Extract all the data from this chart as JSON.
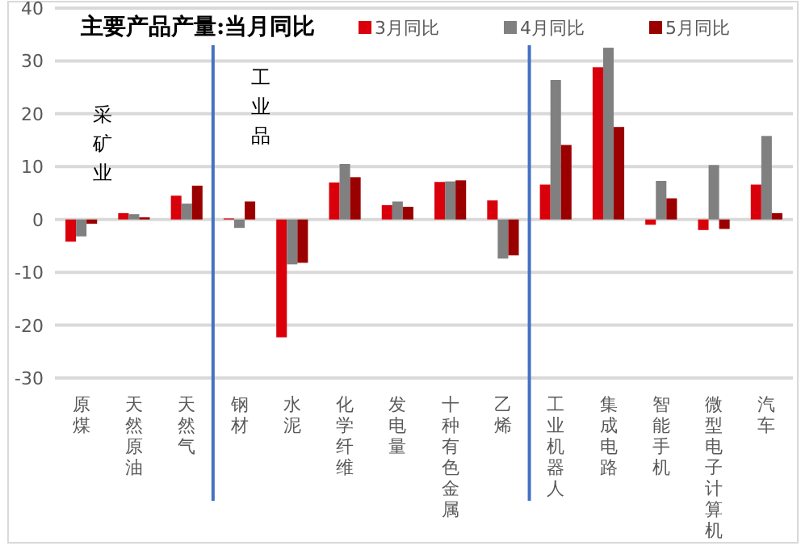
{
  "chart_data": {
    "type": "bar",
    "title": "主要产品产量:当月同比",
    "categories": [
      "原煤",
      "天然原油",
      "天然气",
      "钢材",
      "水泥",
      "化学纤维",
      "发电量",
      "十种有色金属",
      "乙烯",
      "工业机器人",
      "集成电路",
      "智能手机",
      "微型电子计算机",
      "汽车"
    ],
    "series": [
      {
        "name": "3月同比",
        "color": "#d9000b",
        "values": [
          -4.2,
          1.2,
          4.5,
          0.2,
          -22.3,
          7.0,
          2.7,
          7.1,
          3.6,
          6.6,
          28.8,
          -1.0,
          -2.0,
          6.6
        ]
      },
      {
        "name": "4月同比",
        "color": "#808080",
        "values": [
          -3.2,
          1.0,
          3.0,
          -1.6,
          -8.5,
          10.5,
          3.4,
          7.2,
          -7.4,
          26.4,
          32.5,
          7.3,
          10.3,
          15.8
        ]
      },
      {
        "name": "5月同比",
        "color": "#9b0000",
        "values": [
          -0.8,
          0.4,
          6.4,
          3.4,
          -8.2,
          8.0,
          2.4,
          7.4,
          -6.8,
          14.1,
          17.5,
          4.0,
          -1.8,
          1.2
        ]
      }
    ],
    "ylim": [
      -30,
      40
    ],
    "yticks": [
      -30,
      -20,
      -10,
      0,
      10,
      20,
      30,
      40
    ],
    "grid": "y",
    "legend": "top",
    "annotations": [
      "采矿业",
      "工业品"
    ]
  }
}
